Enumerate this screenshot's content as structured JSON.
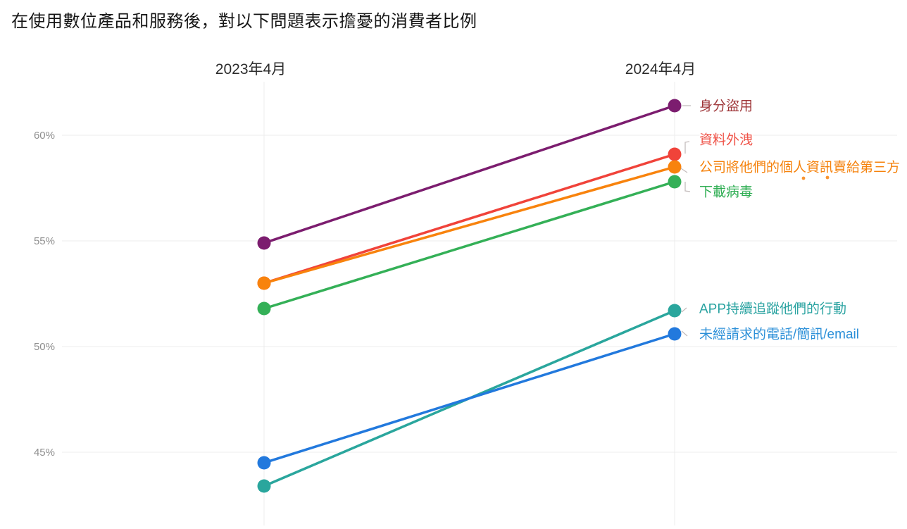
{
  "title": "在使用數位產品和服務後，對以下問題表示擔憂的消費者比例",
  "chart_data": {
    "type": "line",
    "subtype": "slope",
    "categories": [
      "2023年4月",
      "2024年4月"
    ],
    "y_ticks": [
      {
        "label": "45%",
        "value": 45
      },
      {
        "label": "50%",
        "value": 50
      },
      {
        "label": "55%",
        "value": 55
      },
      {
        "label": "60%",
        "value": 60
      }
    ],
    "ylim": [
      41.5,
      62.5
    ],
    "grid": true,
    "unit": "%",
    "legend_position": "right-end-labels",
    "series": [
      {
        "name": "身分盜用",
        "line_color": "#7c1d6f",
        "label_color": "#9e3538",
        "values": [
          54.9,
          61.4
        ]
      },
      {
        "name": "資料外洩",
        "line_color": "#f0433a",
        "label_color": "#ef5348",
        "values": [
          53.0,
          59.1
        ]
      },
      {
        "name": "公司將他們的個人資訊賣給第三方",
        "line_color": "#f8830d",
        "label_color": "#f5820c",
        "values": [
          53.0,
          58.5
        ]
      },
      {
        "name": "下載病毒",
        "line_color": "#34b057",
        "label_color": "#2fae53",
        "values": [
          51.8,
          57.8
        ]
      },
      {
        "name": "APP持續追蹤他們的行動",
        "line_color": "#2aa69d",
        "label_color": "#2aa3a1",
        "values": [
          43.4,
          51.7
        ]
      },
      {
        "name": "未經請求的電話/簡訊/email",
        "line_color": "#2279dd",
        "label_color": "#2b8fd8",
        "values": [
          44.5,
          50.6
        ]
      }
    ]
  }
}
